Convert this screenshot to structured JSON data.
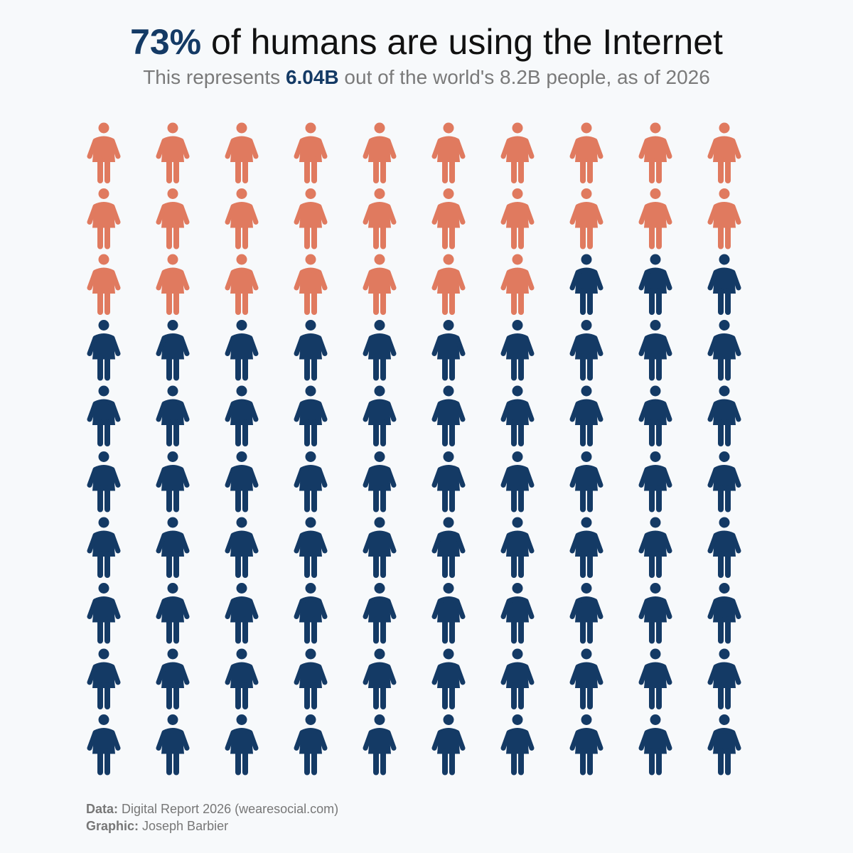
{
  "header": {
    "title_highlight": "73%",
    "title_rest": " of humans are using the Internet",
    "subtitle_prefix": "This represents ",
    "subtitle_highlight": "6.04B",
    "subtitle_suffix": " out of the world's 8.2B people, as of 2026"
  },
  "footer": {
    "data_label": "Data:",
    "data_value": " Digital Report 2026 (wearesocial.com)",
    "graphic_label": "Graphic:",
    "graphic_value": " Joseph Barbier"
  },
  "colors": {
    "online": "#143a65",
    "offline": "#e07a5f",
    "background": "#f7f9fb"
  },
  "chart_data": {
    "type": "pictogram",
    "total_icons": 100,
    "rows": 10,
    "columns": 10,
    "online_count": 73,
    "offline_count": 27,
    "icon": "person-icon",
    "fill_order": "offline icons fill from top-left, row by row"
  }
}
